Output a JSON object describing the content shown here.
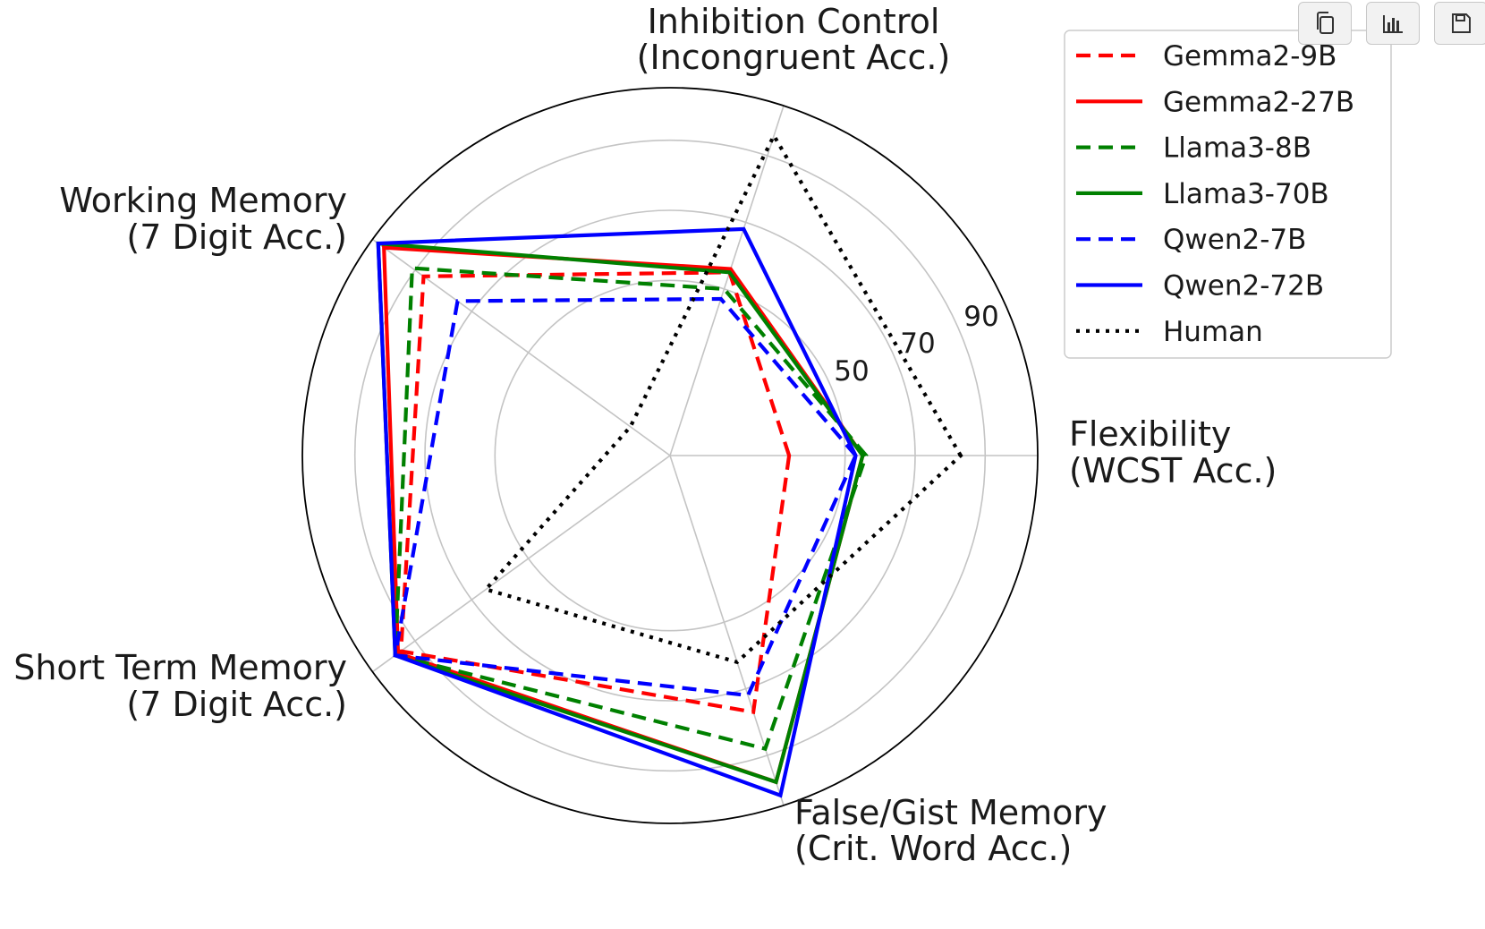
{
  "toolbar": {
    "icons": [
      "copy-icon",
      "bar-chart-icon",
      "save-icon"
    ]
  },
  "chart_data": {
    "type": "radar",
    "title": "",
    "axes": [
      {
        "line1": "Flexibility",
        "line2": "(WCST Acc.)"
      },
      {
        "line1": "Inhibition Control",
        "line2": "(Incongruent Acc.)"
      },
      {
        "line1": "Working Memory",
        "line2": "(7 Digit Acc.)"
      },
      {
        "line1": "Short Term Memory",
        "line2": "(7 Digit Acc.)"
      },
      {
        "line1": "False/Gist Memory",
        "line2": "(Crit. Word Acc.)"
      }
    ],
    "rlim": [
      0,
      105
    ],
    "rgrid_values": [
      50,
      70,
      90
    ],
    "rgrid_labels": [
      "50",
      "70",
      "90"
    ],
    "grid": true,
    "legend_position": "top-right",
    "series": [
      {
        "name": "Gemma2-9B",
        "values": [
          34,
          55,
          87,
          95,
          77
        ],
        "color": "#ff0000",
        "dash": "dashed"
      },
      {
        "name": "Gemma2-27B",
        "values": [
          55,
          56,
          101,
          96,
          98
        ],
        "color": "#ff0000",
        "dash": "solid"
      },
      {
        "name": "Llama3-8B",
        "values": [
          56,
          50,
          91,
          97,
          88
        ],
        "color": "#008000",
        "dash": "dashed"
      },
      {
        "name": "Llama3-70B",
        "values": [
          55,
          55,
          103,
          97,
          98
        ],
        "color": "#008000",
        "dash": "solid"
      },
      {
        "name": "Qwen2-7B",
        "values": [
          53,
          47,
          75,
          97,
          72
        ],
        "color": "#0000ff",
        "dash": "dashed"
      },
      {
        "name": "Qwen2-72B",
        "values": [
          53,
          68,
          103,
          97,
          102
        ],
        "color": "#0000ff",
        "dash": "solid"
      },
      {
        "name": "Human",
        "values": [
          83,
          96,
          14,
          65,
          62
        ],
        "color": "#000000",
        "dash": "dotted"
      }
    ]
  }
}
